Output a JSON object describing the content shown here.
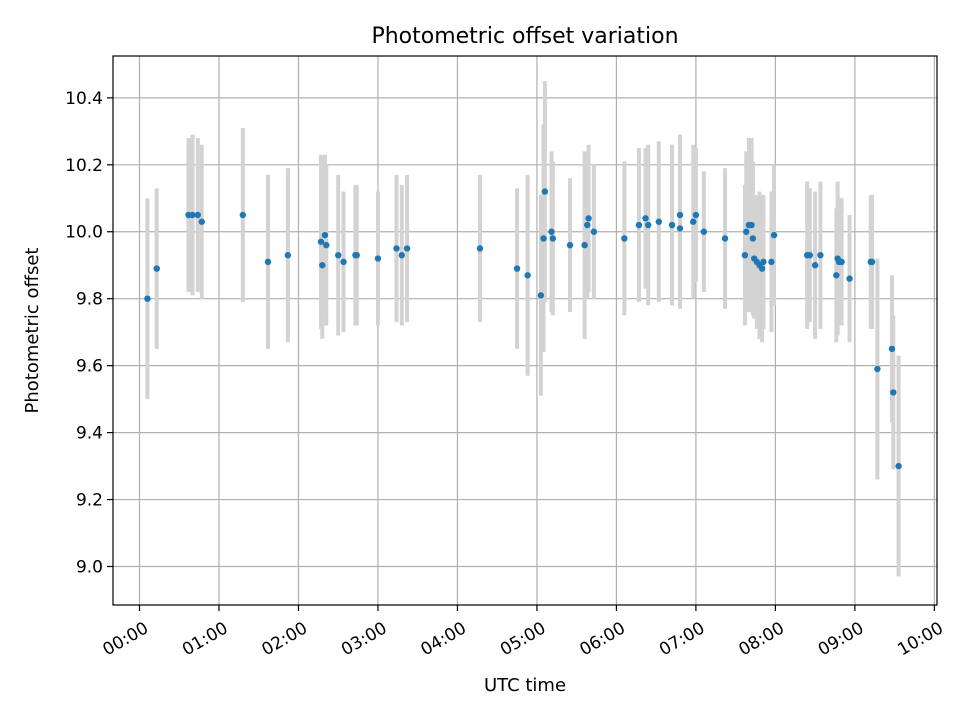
{
  "chart_data": {
    "type": "scatter",
    "title": "Photometric offset variation",
    "xlabel": "UTC time",
    "ylabel": "Photometric offset",
    "xlim": [
      "23:40",
      "10:02"
    ],
    "ylim": [
      8.885,
      10.525
    ],
    "grid": true,
    "x_ticks": [
      "00:00",
      "01:00",
      "02:00",
      "03:00",
      "04:00",
      "05:00",
      "06:00",
      "07:00",
      "08:00",
      "09:00",
      "10:00"
    ],
    "y_ticks": [
      9.0,
      9.2,
      9.4,
      9.6,
      9.8,
      10.0,
      10.2,
      10.4
    ],
    "y_tick_labels": [
      "9.0",
      "9.2",
      "9.4",
      "9.6",
      "9.8",
      "10.0",
      "10.2",
      "10.4"
    ],
    "colors": {
      "marker": "#1f77b4",
      "errorbar": "#d3d3d3",
      "grid": "#b0b0b0"
    },
    "series": [
      {
        "marker": "circle",
        "x": [
          "00:06",
          "00:13",
          "00:37",
          "00:40",
          "00:44",
          "00:47",
          "01:18",
          "01:37",
          "01:52",
          "02:17",
          "02:18",
          "02:20",
          "02:21",
          "02:30",
          "02:34",
          "02:43",
          "02:44",
          "03:00",
          "03:14",
          "03:18",
          "03:22",
          "04:17",
          "04:45",
          "04:53",
          "05:03",
          "05:05",
          "05:06",
          "05:11",
          "05:12",
          "05:25",
          "05:36",
          "05:38",
          "05:39",
          "05:43",
          "06:06",
          "06:17",
          "06:22",
          "06:24",
          "06:32",
          "06:42",
          "06:48",
          "06:48",
          "06:58",
          "07:00",
          "07:06",
          "07:22",
          "07:37",
          "07:38",
          "07:40",
          "07:42",
          "07:43",
          "07:44",
          "07:46",
          "07:48",
          "07:50",
          "07:51",
          "07:57",
          "07:59",
          "08:24",
          "08:26",
          "08:30",
          "08:34",
          "08:46",
          "08:47",
          "08:48",
          "08:50",
          "08:56",
          "09:12",
          "09:13",
          "09:17",
          "09:28",
          "09:29",
          "09:33"
        ],
        "y": [
          9.8,
          9.89,
          10.05,
          10.05,
          10.05,
          10.03,
          10.05,
          9.91,
          9.93,
          9.97,
          9.9,
          9.99,
          9.96,
          9.93,
          9.91,
          9.93,
          9.93,
          9.92,
          9.95,
          9.93,
          9.95,
          9.95,
          9.89,
          9.87,
          9.81,
          9.98,
          10.12,
          10.0,
          9.98,
          9.96,
          9.96,
          10.02,
          10.04,
          10.0,
          9.98,
          10.02,
          10.04,
          10.02,
          10.03,
          10.02,
          10.05,
          10.01,
          10.03,
          10.05,
          10.0,
          9.98,
          9.93,
          10.0,
          10.02,
          10.02,
          9.98,
          9.92,
          9.91,
          9.9,
          9.89,
          9.91,
          9.91,
          9.99,
          9.93,
          9.93,
          9.9,
          9.93,
          9.87,
          9.92,
          9.91,
          9.91,
          9.86,
          9.91,
          9.91,
          9.59,
          9.65,
          9.52,
          9.3
        ],
        "yerr": [
          0.3,
          0.24,
          0.23,
          0.24,
          0.23,
          0.23,
          0.26,
          0.26,
          0.26,
          0.26,
          0.22,
          0.24,
          0.24,
          0.24,
          0.21,
          0.21,
          0.21,
          0.2,
          0.22,
          0.21,
          0.22,
          0.22,
          0.24,
          0.3,
          0.3,
          0.34,
          0.33,
          0.24,
          0.23,
          0.2,
          0.28,
          0.22,
          0.22,
          0.2,
          0.23,
          0.23,
          0.21,
          0.24,
          0.24,
          0.24,
          0.24,
          0.24,
          0.23,
          0.2,
          0.18,
          0.21,
          0.21,
          0.24,
          0.26,
          0.26,
          0.23,
          0.18,
          0.2,
          0.22,
          0.22,
          0.2,
          0.21,
          0.21,
          0.22,
          0.2,
          0.22,
          0.22,
          0.2,
          0.23,
          0.19,
          0.19,
          0.19,
          0.2,
          0.2,
          0.33,
          0.22,
          0.23,
          0.33
        ]
      }
    ]
  }
}
